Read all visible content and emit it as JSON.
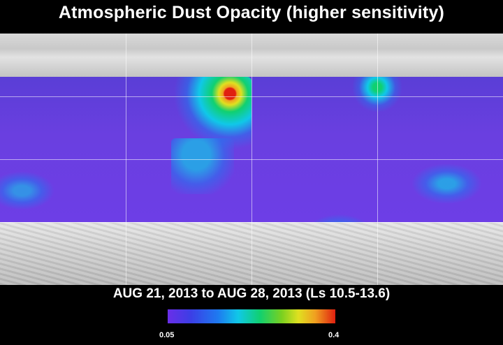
{
  "title": "Atmospheric Dust Opacity (higher sensitivity)",
  "date_range": "AUG 21, 2013 to AUG 28, 2013 (Ls 10.5-13.6)",
  "colorbar": {
    "min_label": "0.05",
    "max_label": "0.4",
    "colors": [
      "#6a2ee8",
      "#3b3fe6",
      "#1e7af0",
      "#10c8e8",
      "#10d070",
      "#7ad020",
      "#e0e020",
      "#f0a020",
      "#e02010"
    ]
  },
  "map": {
    "base_color": "#6a3fe0",
    "polar_relief_color": "#cfcfcf",
    "grid_color": "#ffffff"
  }
}
